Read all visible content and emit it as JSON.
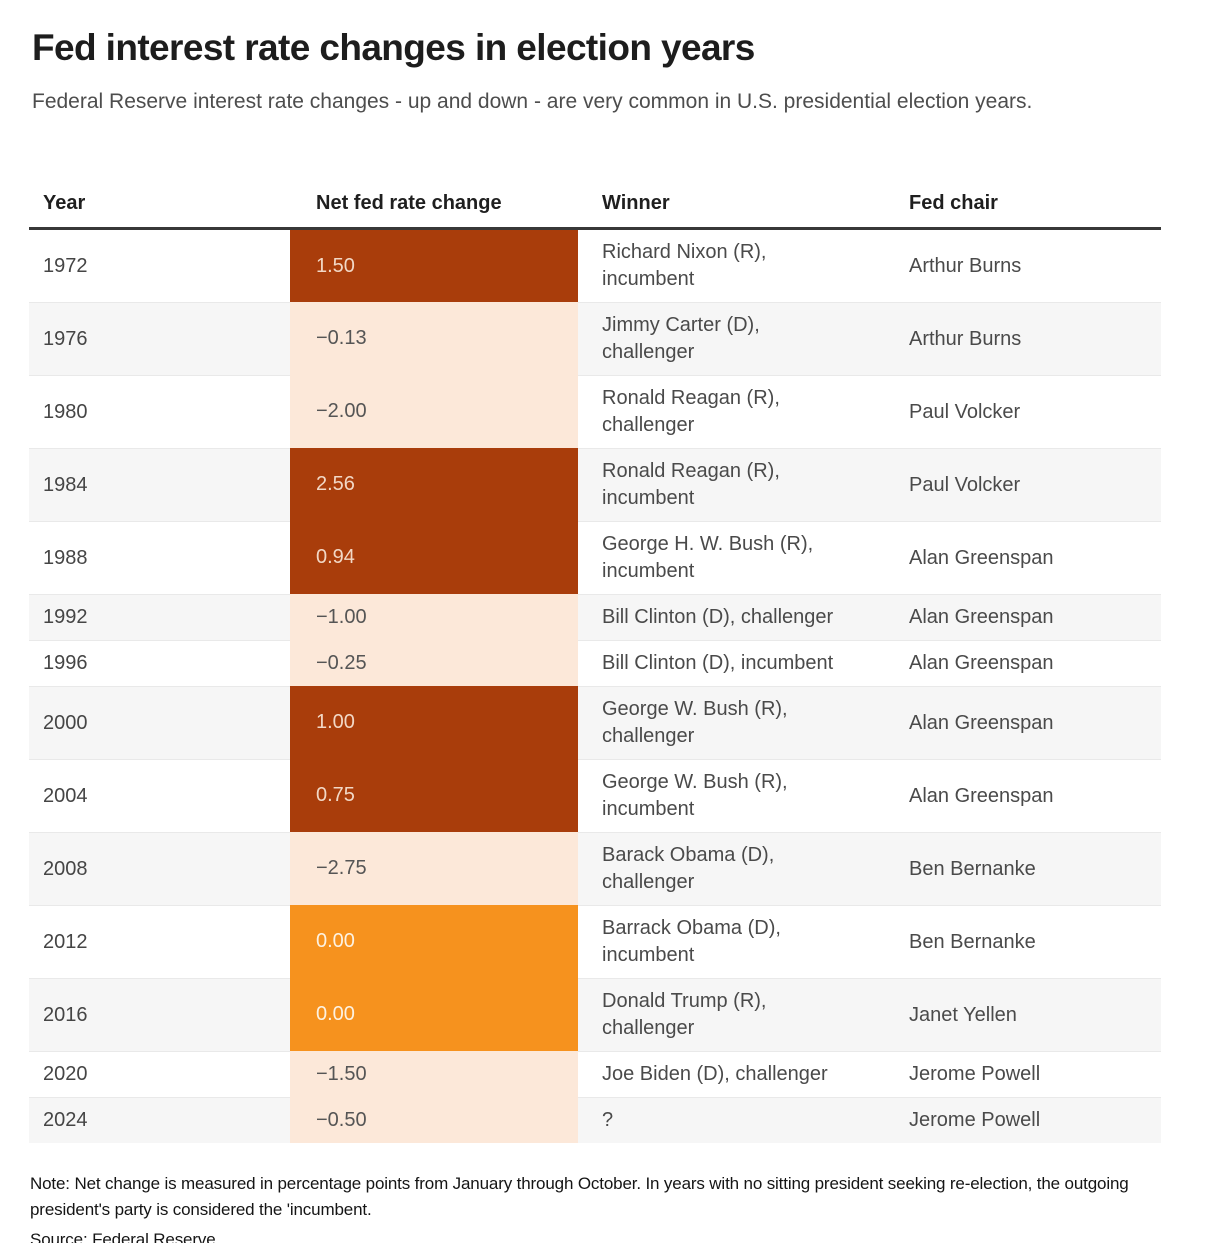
{
  "page": {
    "title": "Fed interest rate changes in election years",
    "subtitle": "Federal Reserve interest rate changes - up and down - are very common in U.S. presidential election years.",
    "note": "Note: Net change is measured in percentage points from January through October. In years with no sitting president seeking re-election, the outgoing president's party is considered the 'incumbent.",
    "source": "Source: Federal Reserve"
  },
  "colors": {
    "positive": "#a93d0b",
    "negative": "#fce8d9",
    "zero": "#f6921e",
    "positive_text": "#f2d8c6",
    "negative_text": "#555555",
    "zero_text": "#fdf2e2",
    "stripe": "#f6f6f6",
    "rule": "#383838",
    "row_border": "#e9e9e9"
  },
  "table": {
    "columns": [
      "Year",
      "Net fed rate change",
      "Winner",
      "Fed chair"
    ],
    "rows": [
      {
        "year": "1972",
        "rate": "1.50",
        "direction": "positive",
        "winner_lines": [
          "Richard Nixon (R),",
          "incumbent"
        ],
        "fed_chair": "Arthur Burns"
      },
      {
        "year": "1976",
        "rate": "−0.13",
        "direction": "negative",
        "winner_lines": [
          "Jimmy Carter (D),",
          "challenger"
        ],
        "fed_chair": "Arthur Burns"
      },
      {
        "year": "1980",
        "rate": "−2.00",
        "direction": "negative",
        "winner_lines": [
          "Ronald Reagan (R),",
          "challenger"
        ],
        "fed_chair": "Paul Volcker"
      },
      {
        "year": "1984",
        "rate": "2.56",
        "direction": "positive",
        "winner_lines": [
          "Ronald Reagan (R),",
          "incumbent"
        ],
        "fed_chair": "Paul Volcker"
      },
      {
        "year": "1988",
        "rate": "0.94",
        "direction": "positive",
        "winner_lines": [
          "George H. W. Bush (R),",
          "incumbent"
        ],
        "fed_chair": "Alan Greenspan"
      },
      {
        "year": "1992",
        "rate": "−1.00",
        "direction": "negative",
        "winner_lines": [
          "Bill Clinton (D), challenger"
        ],
        "fed_chair": "Alan Greenspan"
      },
      {
        "year": "1996",
        "rate": "−0.25",
        "direction": "negative",
        "winner_lines": [
          "Bill Clinton (D), incumbent"
        ],
        "fed_chair": "Alan Greenspan"
      },
      {
        "year": "2000",
        "rate": "1.00",
        "direction": "positive",
        "winner_lines": [
          "George W. Bush (R),",
          "challenger"
        ],
        "fed_chair": "Alan Greenspan"
      },
      {
        "year": "2004",
        "rate": "0.75",
        "direction": "positive",
        "winner_lines": [
          "George W. Bush (R),",
          "incumbent"
        ],
        "fed_chair": "Alan Greenspan"
      },
      {
        "year": "2008",
        "rate": "−2.75",
        "direction": "negative",
        "winner_lines": [
          "Barack Obama (D),",
          "challenger"
        ],
        "fed_chair": "Ben Bernanke"
      },
      {
        "year": "2012",
        "rate": "0.00",
        "direction": "zero",
        "winner_lines": [
          "Barrack Obama (D),",
          "incumbent"
        ],
        "fed_chair": "Ben Bernanke"
      },
      {
        "year": "2016",
        "rate": "0.00",
        "direction": "zero",
        "winner_lines": [
          "Donald Trump (R),",
          "challenger"
        ],
        "fed_chair": "Janet Yellen"
      },
      {
        "year": "2020",
        "rate": "−1.50",
        "direction": "negative",
        "winner_lines": [
          "Joe Biden (D), challenger"
        ],
        "fed_chair": "Jerome Powell"
      },
      {
        "year": "2024",
        "rate": "−0.50",
        "direction": "negative",
        "winner_lines": [
          "?"
        ],
        "fed_chair": "Jerome Powell"
      }
    ]
  },
  "chart_data": {
    "type": "table",
    "title": "Fed interest rate changes in election years",
    "subtitle": "Federal Reserve interest rate changes - up and down - are very common in U.S. presidential election years.",
    "columns": [
      "Year",
      "Net fed rate change",
      "Winner",
      "Fed chair"
    ],
    "rows": [
      [
        "1972",
        1.5,
        "Richard Nixon (R), incumbent",
        "Arthur Burns"
      ],
      [
        "1976",
        -0.13,
        "Jimmy Carter (D), challenger",
        "Arthur Burns"
      ],
      [
        "1980",
        -2.0,
        "Ronald Reagan (R), challenger",
        "Paul Volcker"
      ],
      [
        "1984",
        2.56,
        "Ronald Reagan (R), incumbent",
        "Paul Volcker"
      ],
      [
        "1988",
        0.94,
        "George H. W. Bush (R), incumbent",
        "Alan Greenspan"
      ],
      [
        "1992",
        -1.0,
        "Bill Clinton (D), challenger",
        "Alan Greenspan"
      ],
      [
        "1996",
        -0.25,
        "Bill Clinton (D), incumbent",
        "Alan Greenspan"
      ],
      [
        "2000",
        1.0,
        "George W. Bush (R), challenger",
        "Alan Greenspan"
      ],
      [
        "2004",
        0.75,
        "George W. Bush (R), incumbent",
        "Alan Greenspan"
      ],
      [
        "2008",
        -2.75,
        "Barack Obama (D), challenger",
        "Ben Bernanke"
      ],
      [
        "2012",
        0.0,
        "Barrack Obama (D), incumbent",
        "Ben Bernanke"
      ],
      [
        "2016",
        0.0,
        "Donald Trump (R), challenger",
        "Janet Yellen"
      ],
      [
        "2020",
        -1.5,
        "Joe Biden (D), challenger",
        "Jerome Powell"
      ],
      [
        "2024",
        -0.5,
        "?",
        "Jerome Powell"
      ]
    ],
    "color_encoding": {
      "positive_change": "#a93d0b",
      "negative_change": "#fce8d9",
      "zero_change": "#f6921e"
    },
    "note": "Note: Net change is measured in percentage points from January through October. In years with no sitting president seeking re-election, the outgoing president's party is considered the 'incumbent.",
    "source": "Source: Federal Reserve"
  }
}
